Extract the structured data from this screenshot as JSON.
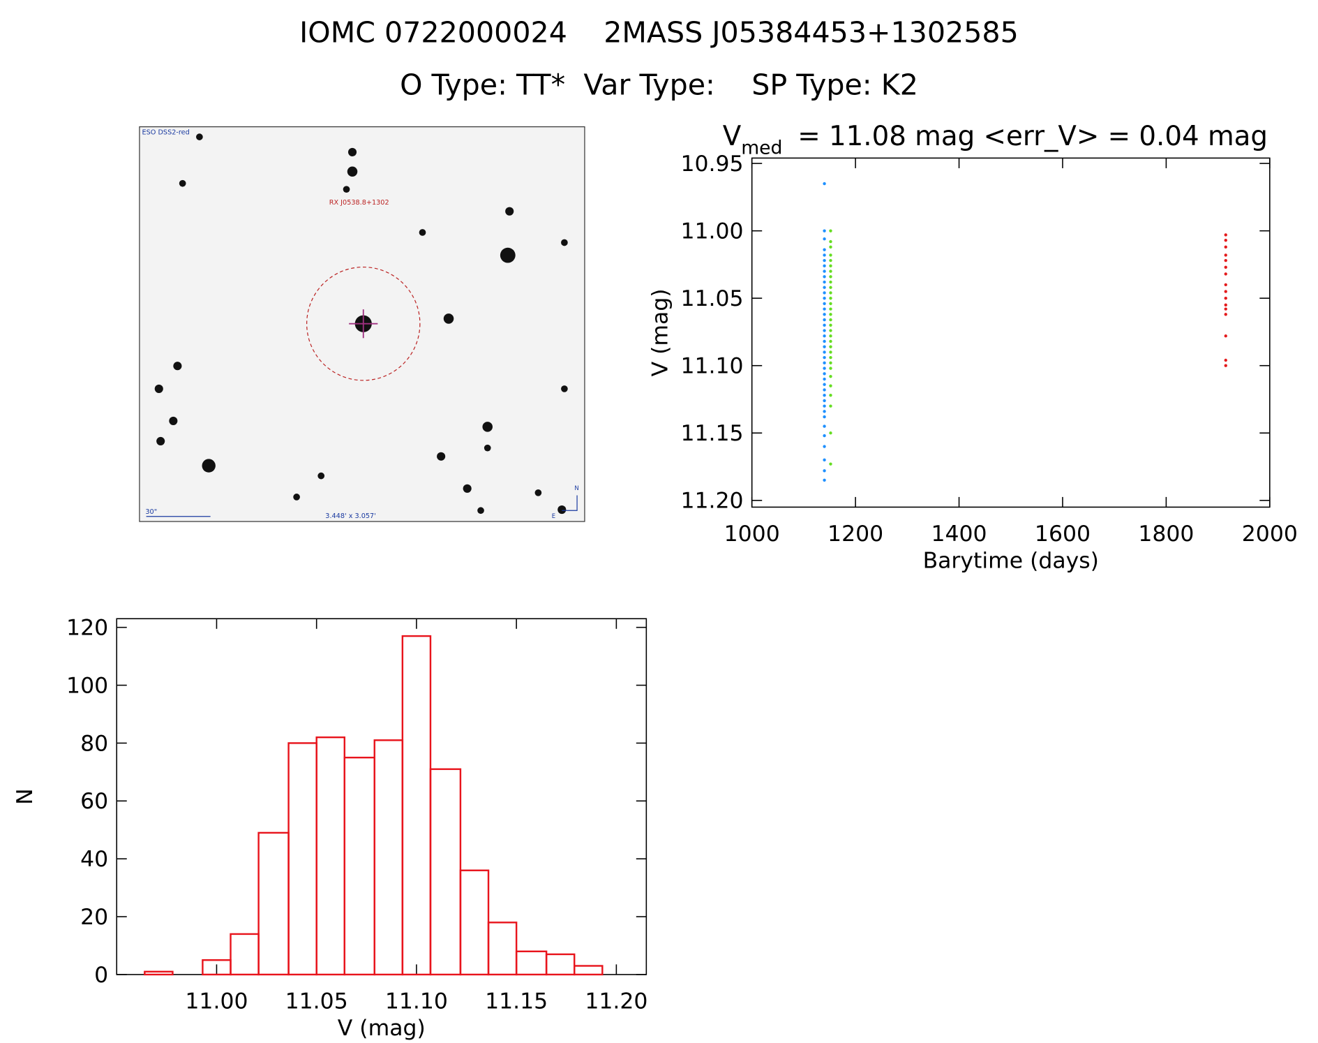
{
  "header": {
    "line1": "IOMC 0722000024    2MASS J05384453+1302585",
    "line2": "O Type: TT*  Var Type:    SP Type: K2"
  },
  "image": {
    "survey": "ESO DSS2-red",
    "object": "RX J0538.8+1302",
    "scale": "30\"",
    "size": "3.448' x 3.057'",
    "north": "N",
    "east": "E"
  },
  "chart_data": [
    {
      "type": "scatter",
      "title": {
        "symbol": "V",
        "subscript": "med",
        "rest": "= 11.08 mag <err_V> = 0.04 mag"
      },
      "x_label": "Barytime (days)",
      "y_label": "V (mag)",
      "xlim": [
        1000,
        2000
      ],
      "xticks": [
        1000,
        1200,
        1400,
        1600,
        1800,
        2000
      ],
      "ylim": [
        10.946,
        11.205
      ],
      "y_inverted": true,
      "yticks": [
        10.95,
        {
          "value": 11,
          "label": "11.00"
        },
        11.05,
        {
          "value": 11.1,
          "label": "11.10"
        },
        11.15,
        {
          "value": 11.2,
          "label": "11.20"
        }
      ],
      "series": [
        {
          "color": "#1e90ff",
          "x": [
            1140,
            1140,
            1140,
            1140,
            1140,
            1140,
            1140,
            1140,
            1140,
            1140,
            1140,
            1140,
            1140,
            1140,
            1140,
            1140,
            1140,
            1140,
            1140,
            1140,
            1140,
            1140,
            1140,
            1140,
            1140,
            1140,
            1140,
            1140,
            1140,
            1140,
            1140,
            1140,
            1140,
            1140,
            1140,
            1140,
            1140,
            1140,
            1140,
            1140,
            1140
          ],
          "y": [
            10.965,
            11.0,
            11.006,
            11.014,
            11.018,
            11.022,
            11.026,
            11.03,
            11.034,
            11.038,
            11.042,
            11.046,
            11.05,
            11.054,
            11.058,
            11.062,
            11.066,
            11.07,
            11.074,
            11.078,
            11.082,
            11.086,
            11.09,
            11.094,
            11.098,
            11.102,
            11.106,
            11.11,
            11.114,
            11.118,
            11.122,
            11.126,
            11.13,
            11.134,
            11.138,
            11.145,
            11.152,
            11.16,
            11.17,
            11.178,
            11.185
          ]
        },
        {
          "color": "#66dd22",
          "x": [
            1152,
            1152,
            1152,
            1152,
            1152,
            1152,
            1152,
            1152,
            1152,
            1152,
            1152,
            1152,
            1152,
            1152,
            1152,
            1152,
            1152,
            1152,
            1152,
            1152,
            1152,
            1152,
            1152,
            1152,
            1152,
            1152,
            1152,
            1152,
            1152,
            1152,
            1152
          ],
          "y": [
            11.0,
            11.008,
            11.012,
            11.018,
            11.022,
            11.026,
            11.03,
            11.034,
            11.038,
            11.042,
            11.046,
            11.05,
            11.054,
            11.058,
            11.062,
            11.066,
            11.07,
            11.074,
            11.078,
            11.082,
            11.086,
            11.09,
            11.094,
            11.098,
            11.102,
            11.108,
            11.115,
            11.122,
            11.13,
            11.15,
            11.173
          ]
        },
        {
          "color": "#e41a1c",
          "x": [
            1915,
            1915,
            1915,
            1915,
            1915,
            1915,
            1915,
            1915,
            1915,
            1915,
            1915,
            1915,
            1915,
            1915,
            1915,
            1915
          ],
          "y": [
            11.003,
            11.007,
            11.012,
            11.018,
            11.022,
            11.027,
            11.032,
            11.04,
            11.045,
            11.05,
            11.055,
            11.058,
            11.062,
            11.078,
            11.096,
            11.1
          ]
        }
      ]
    },
    {
      "type": "histogram",
      "color": "#e8141c",
      "x_label": "V (mag)",
      "y_label": "N",
      "bins": [
        10.964,
        10.978,
        10.993,
        11.007,
        11.021,
        11.036,
        11.05,
        11.064,
        11.079,
        11.093,
        11.107,
        11.122,
        11.136,
        11.15,
        11.165,
        11.179,
        11.193
      ],
      "counts": [
        1,
        0,
        5,
        14,
        49,
        80,
        82,
        75,
        81,
        117,
        71,
        36,
        18,
        8,
        7,
        3
      ],
      "xlim": [
        10.95,
        11.215
      ],
      "xticks": [
        {
          "value": 11,
          "label": "11.00"
        },
        11.05,
        {
          "value": 11.1,
          "label": "11.10"
        },
        11.15,
        {
          "value": 11.2,
          "label": "11.20"
        }
      ],
      "ylim": [
        0,
        123
      ],
      "yticks": [
        0,
        20,
        40,
        60,
        80,
        100,
        120
      ]
    }
  ]
}
